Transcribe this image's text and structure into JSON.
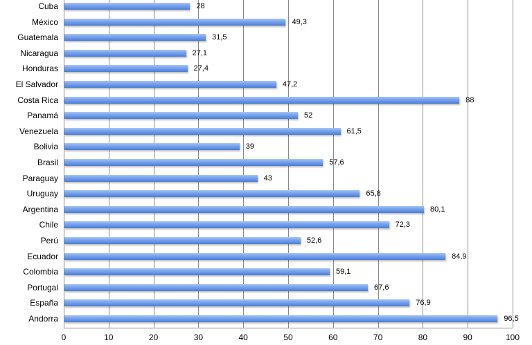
{
  "chart_data": {
    "type": "bar",
    "orientation": "horizontal",
    "title": "",
    "xlabel": "",
    "ylabel": "",
    "categories": [
      "Cuba",
      "México",
      "Guatemala",
      "Nicaragua",
      "Honduras",
      "El Salvador",
      "Costa Rica",
      "Panamá",
      "Venezuela",
      "Bolivia",
      "Brasil",
      "Paraguay",
      "Uruguay",
      "Argentina",
      "Chile",
      "Perú",
      "Ecuador",
      "Colombia",
      "Portugal",
      "España",
      "Andorra"
    ],
    "values": [
      28,
      49.3,
      31.5,
      27.1,
      27.4,
      47.2,
      88,
      52,
      61.5,
      39,
      57.6,
      43,
      65.8,
      80.1,
      72.3,
      52.6,
      84.9,
      59.1,
      67.6,
      76.9,
      96.5
    ],
    "value_labels": [
      "28",
      "49,3",
      "31,5",
      "27,1",
      "27,4",
      "47,2",
      "88",
      "52",
      "61,5",
      "39",
      "57,6",
      "43",
      "65,8",
      "80,1",
      "72,3",
      "52,6",
      "84,9",
      "59,1",
      "67,6",
      "76,9",
      "96,5"
    ],
    "xlim": [
      0,
      100
    ],
    "xticks": [
      "0",
      "10",
      "20",
      "30",
      "40",
      "50",
      "60",
      "70",
      "80",
      "90",
      "100"
    ],
    "grid": true,
    "legend": "none",
    "bar_color": "#6b96e6"
  }
}
